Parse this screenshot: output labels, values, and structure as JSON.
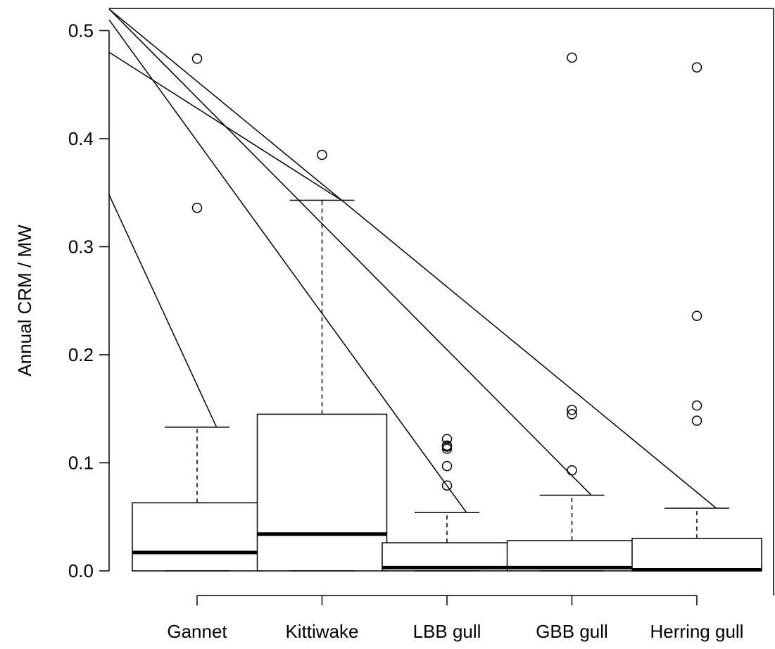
{
  "chart_data": {
    "type": "boxplot",
    "title": "",
    "xlabel": "",
    "ylabel": "Annual CRM / MW",
    "ylim": [
      -0.02,
      0.52
    ],
    "yticks": [
      0.0,
      0.1,
      0.2,
      0.3,
      0.4,
      0.5
    ],
    "ytick_labels": [
      "0.0",
      "0.1",
      "0.2",
      "0.3",
      "0.4",
      "0.5"
    ],
    "categories": [
      "Gannet",
      "Kittiwake",
      "LBB gull",
      "GBB gull",
      "Herring gull"
    ],
    "boxes": [
      {
        "category": "Gannet",
        "whisker_low": 0.0,
        "q1": 0.0,
        "median": 0.017,
        "q3": 0.063,
        "whisker_high": 0.133,
        "outliers": [
          0.336,
          0.474
        ]
      },
      {
        "category": "Kittiwake",
        "whisker_low": 0.0,
        "q1": 0.0,
        "median": 0.034,
        "q3": 0.145,
        "whisker_high": 0.343,
        "outliers": [
          0.385
        ]
      },
      {
        "category": "LBB gull",
        "whisker_low": 0.0,
        "q1": 0.0,
        "median": 0.003,
        "q3": 0.026,
        "whisker_high": 0.054,
        "outliers": [
          0.079,
          0.097,
          0.113,
          0.115,
          0.116,
          0.122
        ]
      },
      {
        "category": "GBB gull",
        "whisker_low": 0.0,
        "q1": 0.0,
        "median": 0.003,
        "q3": 0.028,
        "whisker_high": 0.07,
        "outliers": [
          0.093,
          0.145,
          0.149,
          0.475
        ]
      },
      {
        "category": "Herring gull",
        "whisker_low": 0.0,
        "q1": 0.0,
        "median": 0.001,
        "q3": 0.03,
        "whisker_high": 0.058,
        "outliers": [
          0.139,
          0.153,
          0.236,
          0.466
        ]
      }
    ],
    "label_lines": [
      {
        "target": "Gannet",
        "start_y": 0.348
      },
      {
        "target": "Kittiwake",
        "start_y": 0.48
      },
      {
        "target": "LBB gull",
        "start_y": 0.51
      },
      {
        "target": "GBB gull",
        "start_y": 0.52
      },
      {
        "target": "Herring gull",
        "start_y": 0.52
      }
    ],
    "grid": false,
    "legend": "none",
    "colors": {
      "box_fill": "#ffffff",
      "stroke": "#000000"
    }
  }
}
